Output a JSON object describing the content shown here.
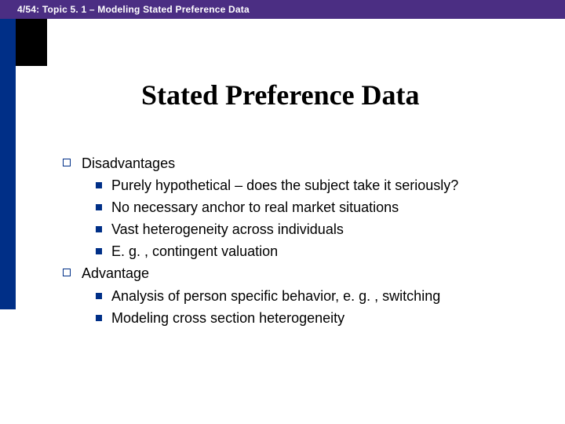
{
  "colors": {
    "topbar_bg": "#4b2e83",
    "accent_blue": "#002f87",
    "corner_black": "#000000",
    "text": "#000000",
    "page_bg": "#ffffff"
  },
  "header": {
    "breadcrumb": "4/54: Topic 5. 1 – Modeling Stated Preference Data"
  },
  "title": "Stated Preference Data",
  "bullets": [
    {
      "text": "Disadvantages",
      "children": [
        {
          "text": "Purely hypothetical – does the subject take it seriously?"
        },
        {
          "text": "No necessary anchor to real market situations"
        },
        {
          "text": "Vast heterogeneity across individuals"
        },
        {
          "text": "E. g. , contingent valuation"
        }
      ]
    },
    {
      "text": "Advantage",
      "children": [
        {
          "text": "Analysis of person specific behavior, e. g. , switching"
        },
        {
          "text": "Modeling cross section heterogeneity"
        }
      ]
    }
  ]
}
